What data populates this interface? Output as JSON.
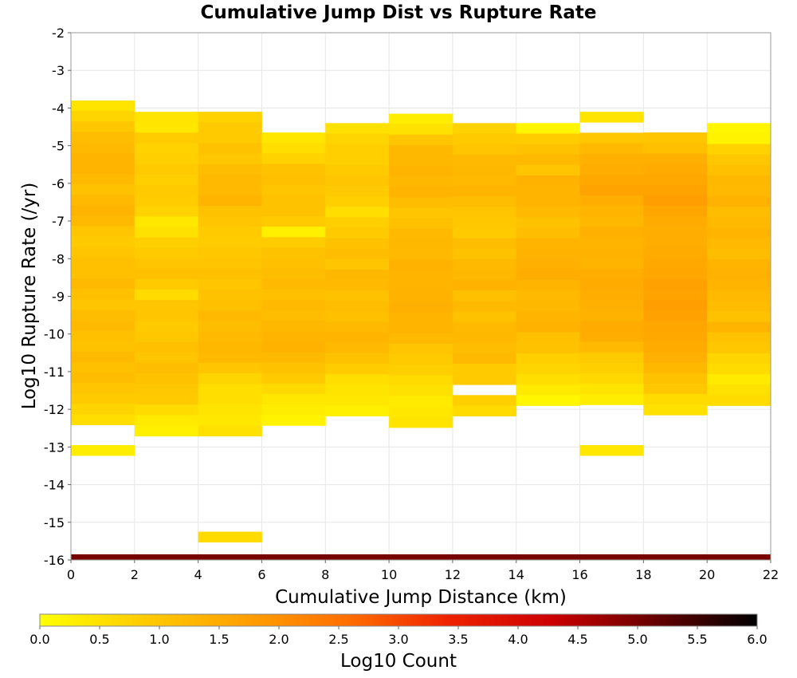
{
  "chart_data": {
    "type": "heatmap",
    "title": "Cumulative Jump Dist vs Rupture Rate",
    "xlabel": "Cumulative Jump Distance (km)",
    "ylabel": "Log10 Rupture Rate (/yr)",
    "xlim": [
      0,
      22
    ],
    "ylim": [
      -16,
      -2
    ],
    "x_ticks": [
      "0",
      "2",
      "4",
      "6",
      "8",
      "10",
      "12",
      "14",
      "16",
      "18",
      "20",
      "22"
    ],
    "y_ticks": [
      "-2",
      "-3",
      "-4",
      "-5",
      "-6",
      "-7",
      "-8",
      "-9",
      "-10",
      "-11",
      "-12",
      "-13",
      "-14",
      "-15",
      "-16"
    ],
    "x_bin_width": 2,
    "y_bin_height": 0.2778,
    "grid": true,
    "colorbar": {
      "label": "Log10 Count",
      "range": [
        0,
        6
      ],
      "ticks": [
        "0.0",
        "0.5",
        "1.0",
        "1.5",
        "2.0",
        "2.5",
        "3.0",
        "3.5",
        "4.0",
        "4.5",
        "5.0",
        "5.5",
        "6.0"
      ],
      "colors": [
        "#ffff00",
        "#ffcc00",
        "#ffa000",
        "#ff6f00",
        "#ee2200",
        "#cc0000",
        "#660000",
        "#000000"
      ]
    },
    "columns": [
      {
        "x_start": 0,
        "top": -3.8,
        "values": [
          0.45,
          0.7,
          0.95,
          1.15,
          1.2,
          1.3,
          1.3,
          1.2,
          1.05,
          1.2,
          1.3,
          1.2,
          1.0,
          0.9,
          1.0,
          1.1,
          1.1,
          1.2,
          1.1,
          1.0,
          1.15,
          1.2,
          1.1,
          1.05,
          1.2,
          1.1,
          1.15,
          1.0,
          0.9,
          0.7,
          0.55
        ]
      },
      {
        "x_start": 2,
        "top": -4.1,
        "values": [
          0.45,
          0.4,
          0.85,
          0.75,
          0.8,
          0.9,
          0.8,
          0.9,
          0.85,
          0.75,
          0.4,
          0.5,
          0.8,
          0.9,
          1.0,
          1.1,
          0.9,
          0.6,
          1.0,
          1.0,
          0.9,
          0.95,
          1.1,
          1.0,
          1.15,
          1.05,
          0.95,
          0.9,
          0.6,
          0.35,
          0.25
        ]
      },
      {
        "x_start": 4,
        "top": -4.1,
        "values": [
          0.75,
          0.9,
          0.9,
          1.05,
          0.95,
          1.15,
          1.2,
          1.2,
          1.3,
          1.05,
          1.0,
          0.9,
          0.85,
          0.95,
          1.0,
          1.1,
          1.0,
          1.05,
          1.1,
          1.2,
          1.15,
          1.2,
          1.25,
          1.2,
          1.0,
          0.7,
          0.55,
          0.55,
          0.45,
          0.4,
          0.5
        ]
      },
      {
        "x_start": 6,
        "top": -4.65,
        "values": [
          0.4,
          0.55,
          0.75,
          1.05,
          1.1,
          1.0,
          1.05,
          1.05,
          0.9,
          0.25,
          0.85,
          1.05,
          1.1,
          1.15,
          1.2,
          1.1,
          1.2,
          1.15,
          1.25,
          1.3,
          1.35,
          1.2,
          1.05,
          0.9,
          0.65,
          0.4,
          0.3,
          0.2
        ]
      },
      {
        "x_start": 8,
        "top": -4.4,
        "values": [
          0.5,
          0.7,
          0.8,
          0.8,
          0.9,
          1.0,
          0.9,
          0.8,
          0.55,
          0.8,
          0.9,
          1.05,
          1.15,
          1.0,
          1.25,
          1.2,
          1.05,
          1.15,
          1.1,
          1.2,
          1.3,
          1.2,
          1.05,
          0.85,
          0.55,
          0.45,
          0.4,
          0.25
        ]
      },
      {
        "x_start": 10,
        "top": -4.15,
        "values": [
          0.3,
          0.5,
          1.0,
          1.25,
          1.25,
          1.3,
          1.25,
          1.3,
          1.15,
          1.0,
          1.1,
          1.2,
          1.25,
          1.2,
          1.35,
          1.3,
          1.3,
          1.35,
          1.4,
          1.3,
          1.3,
          1.2,
          1.0,
          0.9,
          0.8,
          0.6,
          0.5,
          0.35,
          0.4,
          0.45
        ]
      },
      {
        "x_start": 12,
        "top": -4.4,
        "values": [
          0.75,
          0.9,
          1.0,
          1.2,
          1.25,
          1.2,
          1.3,
          1.15,
          1.0,
          0.95,
          0.9,
          1.15,
          1.05,
          1.2,
          1.25,
          1.35,
          1.1,
          1.2,
          1.05,
          1.2,
          1.25,
          1.15,
          1.2,
          0.9,
          0.9,
          null,
          0.8,
          0.6
        ]
      },
      {
        "x_start": 14,
        "top": -4.4,
        "values": [
          0.15,
          0.85,
          1.05,
          1.2,
          1.0,
          1.35,
          1.3,
          1.3,
          1.2,
          1.05,
          1.15,
          1.3,
          1.35,
          1.4,
          1.45,
          1.3,
          1.2,
          1.25,
          1.3,
          1.35,
          1.1,
          1.05,
          0.8,
          0.7,
          0.55,
          0.35,
          0.15
        ]
      },
      {
        "x_start": 16,
        "top": -4.1,
        "values": [
          0.45,
          null,
          0.95,
          1.2,
          1.4,
          1.45,
          1.55,
          1.65,
          1.45,
          1.3,
          1.25,
          1.4,
          1.3,
          1.35,
          1.3,
          1.45,
          1.5,
          1.45,
          1.4,
          1.35,
          1.5,
          1.45,
          1.2,
          0.9,
          0.8,
          0.65,
          0.45,
          0.3
        ]
      },
      {
        "x_start": 18,
        "top": -4.65,
        "values": [
          1.0,
          1.1,
          1.4,
          1.5,
          1.55,
          1.65,
          1.75,
          1.6,
          1.5,
          1.45,
          1.45,
          1.5,
          1.55,
          1.6,
          1.7,
          1.65,
          1.75,
          1.7,
          1.6,
          1.55,
          1.5,
          1.4,
          1.25,
          1.05,
          0.95,
          0.6,
          0.5
        ]
      },
      {
        "x_start": 20,
        "top": -4.4,
        "values": [
          0.15,
          0.2,
          0.75,
          0.95,
          1.1,
          1.25,
          1.2,
          1.35,
          1.15,
          1.2,
          1.3,
          1.2,
          1.15,
          1.3,
          1.35,
          1.3,
          1.2,
          1.15,
          1.05,
          1.3,
          1.05,
          0.95,
          0.7,
          0.6,
          0.35,
          0.5,
          0.6
        ]
      }
    ],
    "isolated_cells": [
      {
        "x_start": 0,
        "y_top": -12.95,
        "value": 0.3
      },
      {
        "x_start": 16,
        "y_top": -12.95,
        "value": 0.4
      },
      {
        "x_start": 4,
        "y_top": -15.25,
        "value": 0.6
      }
    ],
    "bottom_row": {
      "y_top": -15.85,
      "value": 5.0
    }
  }
}
